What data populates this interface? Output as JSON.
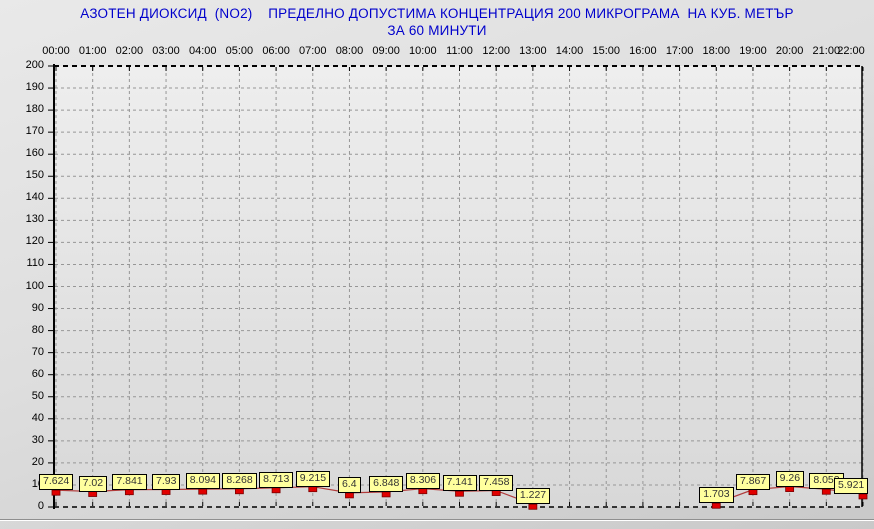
{
  "chart_data": {
    "type": "line",
    "title_line1": "АЗОТЕН ДИОКСИД  (NO2)    ПРЕДЕЛНО ДОПУСТИМА КОНЦЕНТРАЦИЯ 200 МИКРОГРАМА  НА КУБ. МЕТЪР",
    "title_line2": "ЗА 60 МИНУТИ",
    "categories": [
      "00:00",
      "01:00",
      "02:00",
      "03:00",
      "04:00",
      "05:00",
      "06:00",
      "07:00",
      "08:00",
      "09:00",
      "10:00",
      "11:00",
      "12:00",
      "13:00",
      "14:00",
      "15:00",
      "16:00",
      "17:00",
      "18:00",
      "19:00",
      "20:00",
      "21:00",
      "22:00"
    ],
    "values": [
      7.624,
      7.02,
      7.841,
      7.93,
      8.094,
      8.268,
      8.713,
      9.215,
      6.4,
      6.848,
      8.306,
      7.141,
      7.458,
      1.227,
      null,
      null,
      null,
      null,
      1.703,
      7.867,
      9.26,
      8.053,
      5.921
    ],
    "y_tick_labels": [
      "0",
      "10",
      "20",
      "30",
      "40",
      "50",
      "60",
      "70",
      "80",
      "90",
      "100",
      "110",
      "120",
      "130",
      "140",
      "150",
      "160",
      "170",
      "180",
      "190",
      "200"
    ],
    "ylim": [
      0,
      200
    ],
    "y_step": 10,
    "limit_value": 200,
    "grid": true,
    "legend": "none",
    "xlabel": "",
    "ylabel": "",
    "colors": {
      "title": "#0000cc",
      "axis_text": "#000000",
      "axis_line": "#000000",
      "gridline": "#969696",
      "line": "#b13b3b",
      "marker_fill": "#e10000",
      "marker_border": "#7a0000",
      "point_label_bg": "#ffff9e",
      "point_label_border": "#000000",
      "point_label_text": "#333333"
    }
  }
}
